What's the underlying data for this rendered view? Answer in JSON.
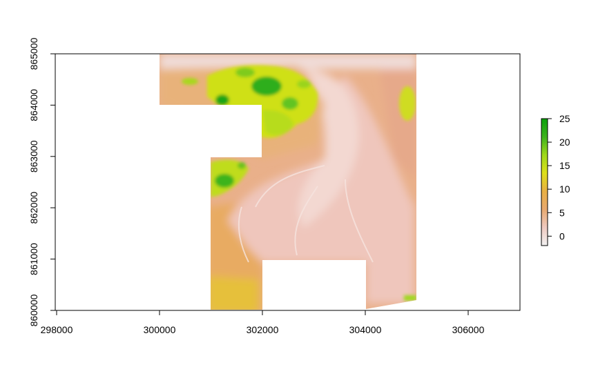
{
  "x_ticks": [
    "298000",
    "300000",
    "302000",
    "304000",
    "306000"
  ],
  "y_ticks": [
    "860000",
    "861000",
    "862000",
    "863000",
    "864000",
    "865000"
  ],
  "legend": {
    "ticks": [
      "0",
      "5",
      "10",
      "15",
      "20",
      "25"
    ],
    "range": [
      -2,
      25
    ],
    "colors": [
      "#f2f2f2",
      "#eec9c0",
      "#e7a96f",
      "#e8b044",
      "#dde01a",
      "#9ed81a",
      "#3cb21c",
      "#0aa00a"
    ]
  },
  "palette": {
    "sand_pink": "#efc8bb",
    "sand_pale": "#f4dcd6",
    "sand_orange": "#e8ab70",
    "sand_yellow": "#e9c43c",
    "veg_yellow": "#dde01a",
    "veg_green": "#58c21e",
    "veg_dark": "#1ea516"
  }
}
